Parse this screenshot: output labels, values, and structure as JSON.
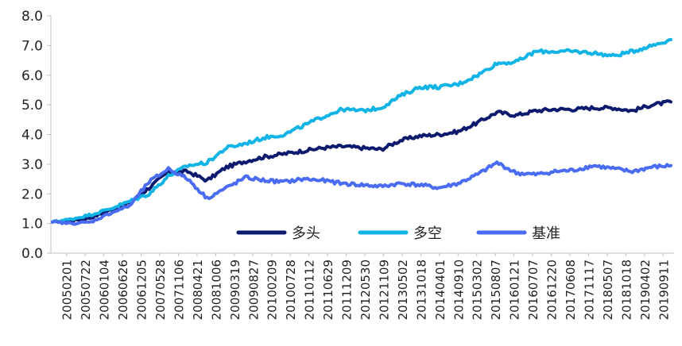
{
  "chart_data": {
    "type": "line",
    "title": "",
    "xlabel": "",
    "ylabel": "",
    "ylim": [
      0,
      8
    ],
    "yticks": [
      "0.0",
      "1.0",
      "2.0",
      "3.0",
      "4.0",
      "5.0",
      "6.0",
      "7.0",
      "8.0"
    ],
    "grid": false,
    "legend_position": "lower-right",
    "x": [
      "20050201",
      "20050722",
      "20060104",
      "20060626",
      "20061205",
      "20070528",
      "20071106",
      "20080421",
      "20081006",
      "20090319",
      "20090827",
      "20100209",
      "20100728",
      "20110112",
      "20110629",
      "20111209",
      "20120530",
      "20121109",
      "20130502",
      "20131018",
      "20140401",
      "20140910",
      "20150302",
      "20150807",
      "20160121",
      "20160707",
      "20161220",
      "20170608",
      "20171117",
      "20180507",
      "20181018",
      "20190402",
      "20190911"
    ],
    "series": [
      {
        "name": "多头",
        "color": "#0d1b6e",
        "values": [
          1.05,
          1.1,
          1.2,
          1.45,
          1.7,
          2.2,
          2.75,
          2.75,
          2.45,
          2.9,
          3.1,
          3.25,
          3.35,
          3.45,
          3.55,
          3.6,
          3.55,
          3.5,
          3.8,
          3.95,
          4.0,
          4.1,
          4.4,
          4.75,
          4.65,
          4.8,
          4.85,
          4.85,
          4.9,
          4.9,
          4.8,
          5.0,
          5.1
        ]
      },
      {
        "name": "多空",
        "color": "#12b4e6",
        "values": [
          1.05,
          1.15,
          1.3,
          1.5,
          1.75,
          2.0,
          2.6,
          2.95,
          3.05,
          3.55,
          3.7,
          3.9,
          4.0,
          4.3,
          4.6,
          4.85,
          4.8,
          4.9,
          5.3,
          5.6,
          5.6,
          5.7,
          6.0,
          6.4,
          6.45,
          6.8,
          6.8,
          6.8,
          6.75,
          6.65,
          6.8,
          7.0,
          7.2
        ]
      },
      {
        "name": "基准",
        "color": "#4a6cf2",
        "values": [
          1.05,
          1.0,
          1.05,
          1.35,
          1.6,
          2.4,
          2.85,
          2.5,
          1.85,
          2.2,
          2.55,
          2.45,
          2.4,
          2.5,
          2.45,
          2.35,
          2.3,
          2.25,
          2.35,
          2.3,
          2.2,
          2.35,
          2.65,
          3.05,
          2.7,
          2.65,
          2.75,
          2.8,
          2.95,
          2.85,
          2.75,
          2.9,
          2.95
        ]
      }
    ]
  }
}
